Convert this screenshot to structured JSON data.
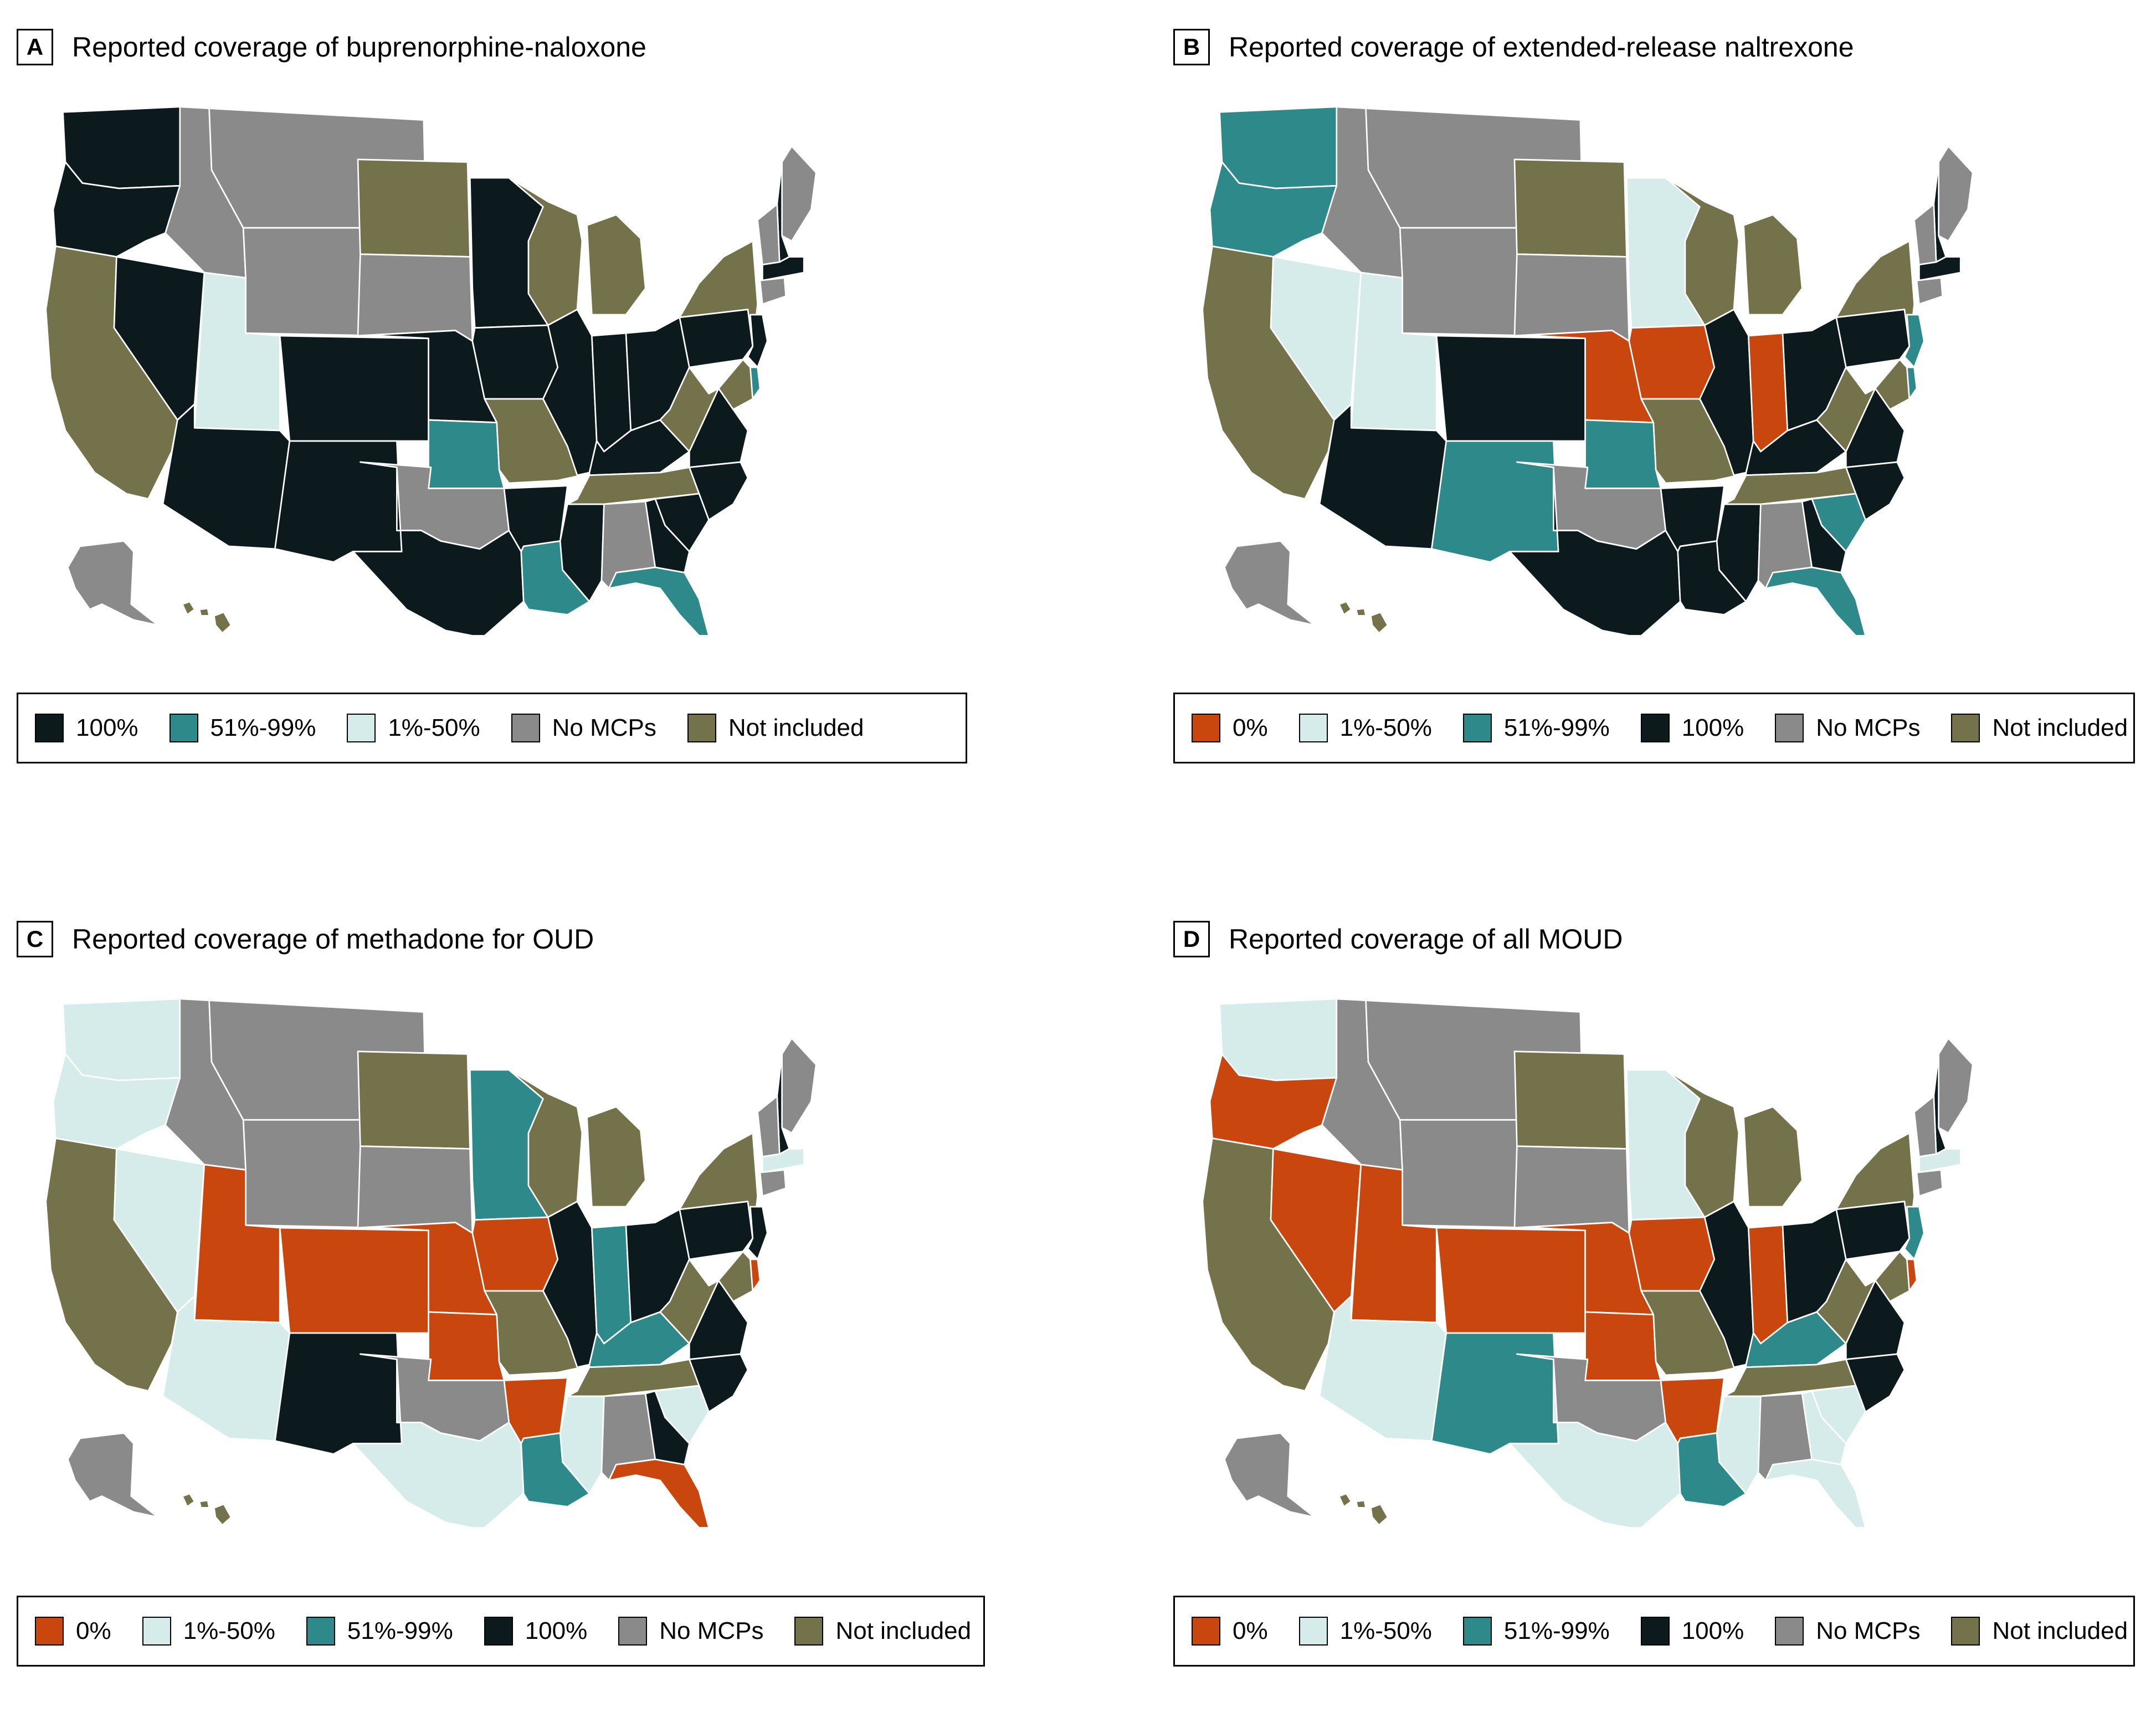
{
  "colors": {
    "zero": "#c9470e",
    "low": "#d6ecea",
    "mid": "#2e8a8a",
    "full": "#0c1a1e",
    "nomcp": "#8a8a8a",
    "notincl": "#74724a"
  },
  "panels": [
    {
      "letter": "A",
      "title": "Reported coverage of buprenorphine-naloxone",
      "legend": [
        {
          "key": "full",
          "label": "100%"
        },
        {
          "key": "mid",
          "label": "51%-99%"
        },
        {
          "key": "low",
          "label": "1%-50%"
        },
        {
          "key": "nomcp",
          "label": "No MCPs"
        },
        {
          "key": "notincl",
          "label": "Not included"
        }
      ],
      "states": {
        "WA": "full",
        "OR": "full",
        "CA": "notincl",
        "NV": "full",
        "ID": "nomcp",
        "MT": "nomcp",
        "WY": "nomcp",
        "UT": "low",
        "AZ": "full",
        "CO": "full",
        "NM": "full",
        "ND": "notincl",
        "SD": "nomcp",
        "NE": "full",
        "KS": "mid",
        "OK": "nomcp",
        "TX": "full",
        "MN": "full",
        "IA": "full",
        "MO": "notincl",
        "AR": "full",
        "LA": "mid",
        "WI": "notincl",
        "IL": "full",
        "MS": "full",
        "MI": "notincl",
        "IN": "full",
        "KY": "full",
        "TN": "notincl",
        "AL": "nomcp",
        "OH": "full",
        "WV": "notincl",
        "VA": "full",
        "NC": "full",
        "SC": "full",
        "GA": "full",
        "FL": "mid",
        "PA": "full",
        "NY": "notincl",
        "ME": "nomcp",
        "NH": "full",
        "VT": "nomcp",
        "MA": "full",
        "CT": "nomcp",
        "NJ": "full",
        "MD": "notincl",
        "DE": "mid",
        "AK": "nomcp",
        "HI": "notincl"
      }
    },
    {
      "letter": "B",
      "title": "Reported coverage of extended-release naltrexone",
      "legend": [
        {
          "key": "zero",
          "label": "0%"
        },
        {
          "key": "low",
          "label": "1%-50%"
        },
        {
          "key": "mid",
          "label": "51%-99%"
        },
        {
          "key": "full",
          "label": "100%"
        },
        {
          "key": "nomcp",
          "label": "No MCPs"
        },
        {
          "key": "notincl",
          "label": "Not included"
        }
      ],
      "states": {
        "WA": "mid",
        "OR": "mid",
        "CA": "notincl",
        "NV": "low",
        "ID": "nomcp",
        "MT": "nomcp",
        "WY": "nomcp",
        "UT": "low",
        "AZ": "full",
        "CO": "full",
        "NM": "mid",
        "ND": "notincl",
        "SD": "nomcp",
        "NE": "zero",
        "KS": "mid",
        "OK": "nomcp",
        "TX": "full",
        "MN": "low",
        "IA": "zero",
        "MO": "notincl",
        "AR": "full",
        "LA": "full",
        "WI": "notincl",
        "IL": "full",
        "MS": "full",
        "MI": "notincl",
        "IN": "zero",
        "KY": "full",
        "TN": "notincl",
        "AL": "nomcp",
        "OH": "full",
        "WV": "notincl",
        "VA": "full",
        "NC": "full",
        "SC": "mid",
        "GA": "full",
        "FL": "mid",
        "PA": "full",
        "NY": "notincl",
        "ME": "nomcp",
        "NH": "full",
        "VT": "nomcp",
        "MA": "full",
        "CT": "nomcp",
        "NJ": "mid",
        "MD": "notincl",
        "DE": "mid",
        "AK": "nomcp",
        "HI": "notincl"
      }
    },
    {
      "letter": "C",
      "title": "Reported coverage of methadone for OUD",
      "legend": [
        {
          "key": "zero",
          "label": "0%"
        },
        {
          "key": "low",
          "label": "1%-50%"
        },
        {
          "key": "mid",
          "label": "51%-99%"
        },
        {
          "key": "full",
          "label": "100%"
        },
        {
          "key": "nomcp",
          "label": "No MCPs"
        },
        {
          "key": "notincl",
          "label": "Not included"
        }
      ],
      "states": {
        "WA": "low",
        "OR": "low",
        "CA": "notincl",
        "NV": "low",
        "ID": "nomcp",
        "MT": "nomcp",
        "WY": "nomcp",
        "UT": "zero",
        "AZ": "low",
        "CO": "zero",
        "NM": "full",
        "ND": "notincl",
        "SD": "nomcp",
        "NE": "zero",
        "KS": "zero",
        "OK": "nomcp",
        "TX": "low",
        "MN": "mid",
        "IA": "zero",
        "MO": "notincl",
        "AR": "zero",
        "LA": "mid",
        "WI": "notincl",
        "IL": "full",
        "MS": "low",
        "MI": "notincl",
        "IN": "mid",
        "KY": "mid",
        "TN": "notincl",
        "AL": "nomcp",
        "OH": "full",
        "WV": "notincl",
        "VA": "full",
        "NC": "full",
        "SC": "low",
        "GA": "full",
        "FL": "zero",
        "PA": "full",
        "NY": "notincl",
        "ME": "nomcp",
        "NH": "full",
        "VT": "nomcp",
        "MA": "low",
        "CT": "nomcp",
        "NJ": "full",
        "MD": "notincl",
        "DE": "zero",
        "AK": "nomcp",
        "HI": "notincl"
      }
    },
    {
      "letter": "D",
      "title": "Reported coverage of all MOUD",
      "legend": [
        {
          "key": "zero",
          "label": "0%"
        },
        {
          "key": "low",
          "label": "1%-50%"
        },
        {
          "key": "mid",
          "label": "51%-99%"
        },
        {
          "key": "full",
          "label": "100%"
        },
        {
          "key": "nomcp",
          "label": "No MCPs"
        },
        {
          "key": "notincl",
          "label": "Not included"
        }
      ],
      "states": {
        "WA": "low",
        "OR": "zero",
        "CA": "notincl",
        "NV": "zero",
        "ID": "nomcp",
        "MT": "nomcp",
        "WY": "nomcp",
        "UT": "zero",
        "AZ": "low",
        "CO": "zero",
        "NM": "mid",
        "ND": "notincl",
        "SD": "nomcp",
        "NE": "zero",
        "KS": "zero",
        "OK": "nomcp",
        "TX": "low",
        "MN": "low",
        "IA": "zero",
        "MO": "notincl",
        "AR": "zero",
        "LA": "mid",
        "WI": "notincl",
        "IL": "full",
        "MS": "low",
        "MI": "notincl",
        "IN": "zero",
        "KY": "mid",
        "TN": "notincl",
        "AL": "nomcp",
        "OH": "full",
        "WV": "notincl",
        "VA": "full",
        "NC": "full",
        "SC": "low",
        "GA": "low",
        "FL": "low",
        "PA": "full",
        "NY": "notincl",
        "ME": "nomcp",
        "NH": "full",
        "VT": "nomcp",
        "MA": "low",
        "CT": "nomcp",
        "NJ": "mid",
        "MD": "notincl",
        "DE": "zero",
        "AK": "nomcp",
        "HI": "notincl"
      }
    }
  ]
}
